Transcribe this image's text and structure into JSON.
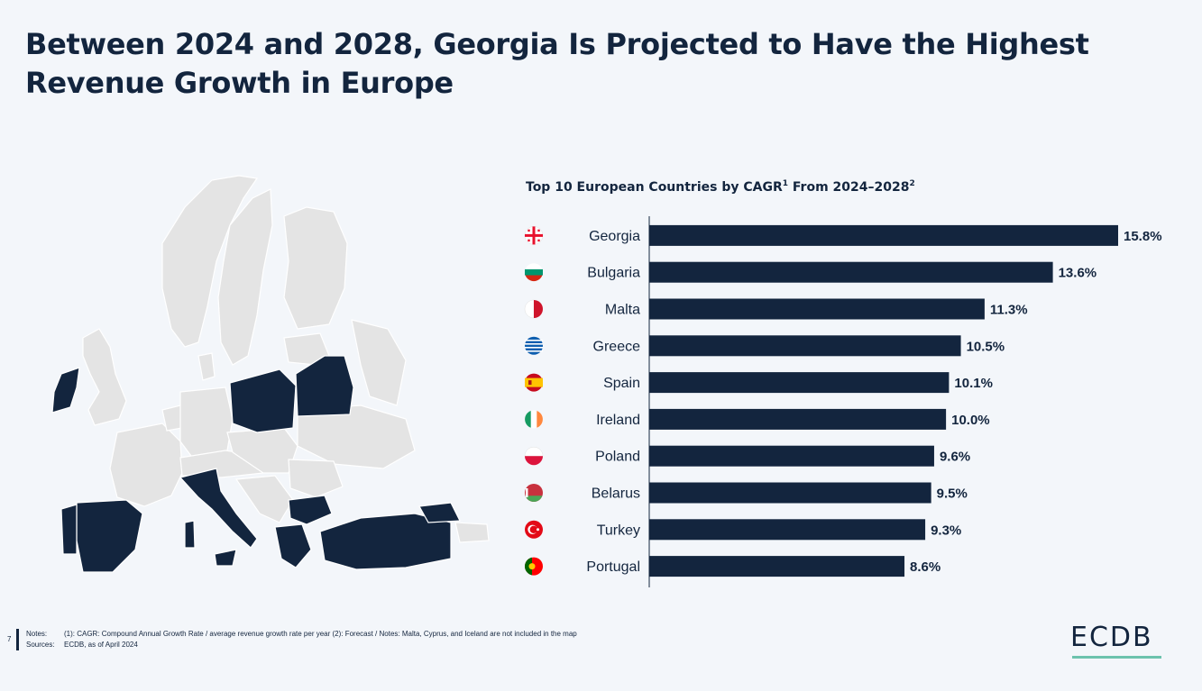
{
  "page": {
    "title": "Between 2024 and 2028, Georgia Is Projected to Have the Highest Revenue Growth in Europe",
    "chart_title_main": "Top 10 European Countries by CAGR",
    "chart_title_sup1": "1",
    "chart_title_range": " From 2024–2028",
    "chart_title_sup2": "2"
  },
  "chart_data": {
    "type": "bar",
    "orientation": "horizontal",
    "title": "Top 10 European Countries by CAGR¹ From 2024–2028²",
    "categories": [
      "Georgia",
      "Bulgaria",
      "Malta",
      "Greece",
      "Spain",
      "Ireland",
      "Poland",
      "Belarus",
      "Turkey",
      "Portugal"
    ],
    "values": [
      15.8,
      13.6,
      11.3,
      10.5,
      10.1,
      10.0,
      9.6,
      9.5,
      9.3,
      8.6
    ],
    "value_labels": [
      "15.8%",
      "13.6%",
      "11.3%",
      "10.5%",
      "10.1%",
      "10.0%",
      "9.6%",
      "9.5%",
      "9.3%",
      "8.6%"
    ],
    "flags": [
      "georgia-flag-icon",
      "bulgaria-flag-icon",
      "malta-flag-icon",
      "greece-flag-icon",
      "spain-flag-icon",
      "ireland-flag-icon",
      "poland-flag-icon",
      "belarus-flag-icon",
      "turkey-flag-icon",
      "portugal-flag-icon"
    ],
    "xlim": [
      0,
      18
    ],
    "bar_color": "#13253e",
    "grid": false,
    "xlabel": "",
    "ylabel": ""
  },
  "map": {
    "highlight_color": "#13253e",
    "base_color": "#e4e4e4",
    "highlighted_countries": [
      "Georgia",
      "Bulgaria",
      "Greece",
      "Spain",
      "Ireland",
      "Poland",
      "Belarus",
      "Turkey",
      "Portugal"
    ]
  },
  "footer": {
    "page_number": "7",
    "notes_label": "Notes:",
    "notes_text": "(1): CAGR: Compound Annual Growth Rate / average revenue growth rate per year (2): Forecast / Notes: Malta, Cyprus, and Iceland are not included in the map",
    "sources_label": "Sources:",
    "sources_text": "ECDB, as of April 2024"
  },
  "logo": {
    "text": "ECDB",
    "accent_color": "#6cc3ad"
  }
}
